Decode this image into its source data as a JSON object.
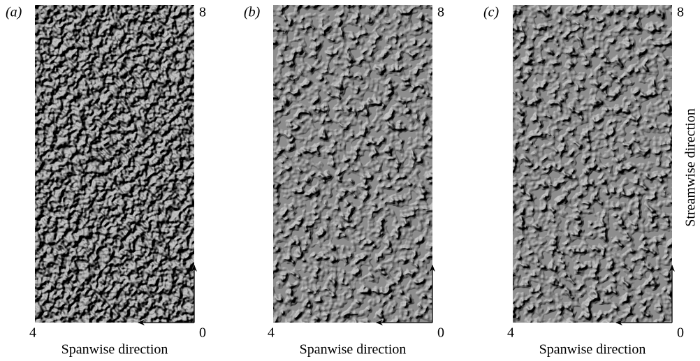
{
  "panels": [
    {
      "label": "(a)",
      "top_tick": 8,
      "left_tick": 4,
      "right_tick": 0,
      "x_label": "Spanwise direction"
    },
    {
      "label": "(b)",
      "top_tick": 8,
      "left_tick": 4,
      "right_tick": 0,
      "x_label": "Spanwise direction"
    },
    {
      "label": "(c)",
      "top_tick": 8,
      "left_tick": 4,
      "right_tick": 0,
      "x_label": "Spanwise direction"
    }
  ],
  "y_label": "Streamwise direction"
}
